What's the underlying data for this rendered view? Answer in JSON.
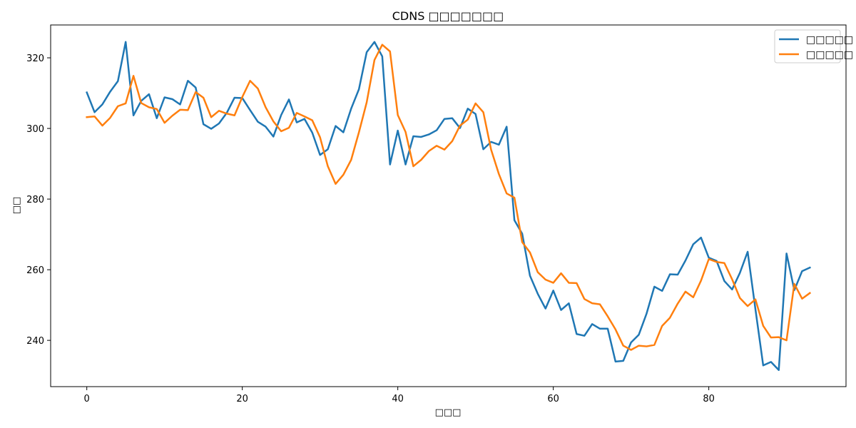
{
  "chart_data": {
    "type": "line",
    "title": "CDNS □□□□□□□",
    "xlabel": "□□□",
    "ylabel": "□□",
    "xlim": [
      -4.65,
      97.65
    ],
    "ylim": [
      226.9,
      329.3
    ],
    "xticks": [
      0,
      20,
      40,
      60,
      80
    ],
    "yticks": [
      240,
      260,
      280,
      300,
      320
    ],
    "grid": false,
    "legend_position": "top-right",
    "series": [
      {
        "name": "□□□□□",
        "color": "#1f77b4",
        "x": [
          0,
          1,
          2,
          3,
          4,
          5,
          6,
          7,
          8,
          9,
          10,
          11,
          12,
          13,
          14,
          15,
          16,
          17,
          18,
          19,
          20,
          21,
          22,
          23,
          24,
          25,
          26,
          27,
          28,
          29,
          30,
          31,
          32,
          33,
          34,
          35,
          36,
          37,
          38,
          39,
          40,
          41,
          42,
          43,
          44,
          45,
          46,
          47,
          48,
          49,
          50,
          51,
          52,
          53,
          54,
          55,
          56,
          57,
          58,
          59,
          60,
          61,
          62,
          63,
          64,
          65,
          66,
          67,
          68,
          69,
          70,
          71,
          72,
          73,
          74,
          75,
          76,
          77,
          78,
          79,
          80,
          81,
          82,
          83,
          84,
          85,
          86,
          87,
          88,
          89,
          90,
          91,
          92,
          93
        ],
        "values": [
          310.2,
          304.6,
          306.8,
          310.4,
          313.4,
          324.5,
          303.7,
          307.8,
          309.7,
          302.9,
          308.8,
          308.3,
          306.8,
          313.5,
          311.6,
          301.2,
          299.9,
          301.4,
          304.4,
          308.7,
          308.6,
          305.2,
          301.9,
          300.5,
          297.7,
          303.8,
          308.2,
          301.7,
          302.7,
          298.8,
          292.5,
          294.1,
          300.7,
          298.9,
          305.6,
          311.1,
          321.6,
          324.5,
          320.4,
          289.8,
          299.4,
          289.8,
          297.8,
          297.6,
          298.3,
          299.5,
          302.7,
          302.9,
          300.1,
          305.6,
          304.1,
          294.1,
          296.2,
          295.4,
          300.5,
          274.0,
          270.2,
          258.3,
          253.2,
          249.0,
          254.1,
          248.6,
          250.5,
          241.8,
          241.3,
          244.6,
          243.3,
          243.3,
          234.0,
          234.2,
          239.4,
          241.6,
          247.6,
          255.2,
          254.0,
          258.7,
          258.6,
          262.6,
          267.2,
          269.1,
          263.4,
          262.5,
          256.8,
          254.4,
          259.1,
          265.1,
          248.8,
          232.9,
          233.9,
          231.6,
          264.6,
          254.2,
          259.6,
          260.6
        ]
      },
      {
        "name": "□□□□□",
        "color": "#ff7f0e",
        "x": [
          0,
          1,
          2,
          3,
          4,
          5,
          6,
          7,
          8,
          9,
          10,
          11,
          12,
          13,
          14,
          15,
          16,
          17,
          18,
          19,
          20,
          21,
          22,
          23,
          24,
          25,
          26,
          27,
          28,
          29,
          30,
          31,
          32,
          33,
          34,
          35,
          36,
          37,
          38,
          39,
          40,
          41,
          42,
          43,
          44,
          45,
          46,
          47,
          48,
          49,
          50,
          51,
          52,
          53,
          54,
          55,
          56,
          57,
          58,
          59,
          60,
          61,
          62,
          63,
          64,
          65,
          66,
          67,
          68,
          69,
          70,
          71,
          72,
          73,
          74,
          75,
          76,
          77,
          78,
          79,
          80,
          81,
          82,
          83,
          84,
          85,
          86,
          87,
          88,
          89,
          90,
          91,
          92,
          93
        ],
        "values": [
          303.2,
          303.4,
          300.8,
          303.0,
          306.3,
          307.1,
          314.9,
          307.2,
          306.0,
          305.5,
          301.6,
          303.6,
          305.3,
          305.2,
          310.3,
          308.7,
          303.2,
          305.0,
          304.2,
          303.7,
          308.9,
          313.5,
          311.3,
          306.0,
          302.0,
          299.2,
          300.2,
          304.4,
          303.4,
          302.3,
          297.5,
          289.3,
          284.3,
          286.9,
          291.1,
          298.9,
          307.4,
          319.4,
          323.7,
          321.8,
          303.8,
          299.0,
          289.3,
          291.1,
          293.6,
          295.1,
          294.0,
          296.4,
          300.8,
          302.5,
          307.1,
          304.6,
          294.0,
          287.1,
          281.6,
          280.4,
          267.8,
          264.9,
          259.3,
          257.2,
          256.3,
          259.0,
          256.3,
          256.2,
          251.7,
          250.5,
          250.2,
          246.8,
          243.1,
          238.5,
          237.3,
          238.5,
          238.3,
          238.7,
          244.1,
          246.4,
          250.4,
          253.8,
          252.2,
          256.9,
          263.0,
          262.2,
          261.9,
          257.3,
          252.0,
          249.7,
          251.6,
          244.1,
          240.8,
          240.9,
          240.0,
          256.0,
          251.8,
          253.4
        ]
      }
    ]
  }
}
